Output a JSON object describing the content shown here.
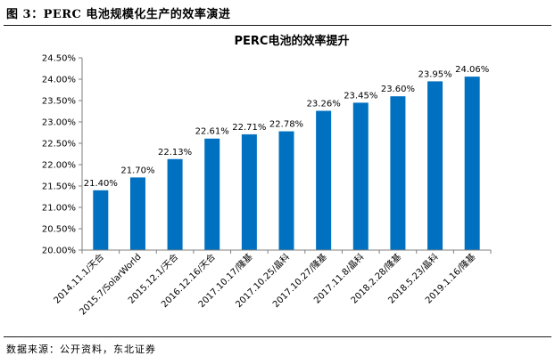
{
  "figure": {
    "title": "图 3：PERC 电池规模化生产的效率演进",
    "source": "数据来源：公开资料，东北证券"
  },
  "chart_data": {
    "type": "bar",
    "title": "PERC电池的效率提升",
    "categories": [
      "2014.11.1/天合",
      "2015.7/SolarWorld",
      "2015.12.1/天合",
      "2016.12.16/天合",
      "2017.10.17/隆基",
      "2017.10.25/晶科",
      "2017.10.27/隆基",
      "2017.11.8/晶科",
      "2018.2.28/隆基",
      "2018.5.23/晶科",
      "2019.1.16/隆基"
    ],
    "values": [
      21.4,
      21.7,
      22.13,
      22.61,
      22.71,
      22.78,
      23.26,
      23.45,
      23.6,
      23.95,
      24.06
    ],
    "data_labels": [
      "21.40%",
      "21.70%",
      "22.13%",
      "22.61%",
      "22.71%",
      "22.78%",
      "23.26%",
      "23.45%",
      "23.60%",
      "23.95%",
      "24.06%"
    ],
    "ylim": [
      20.0,
      24.5
    ],
    "yticks": [
      20.0,
      20.5,
      21.0,
      21.5,
      22.0,
      22.5,
      23.0,
      23.5,
      24.0,
      24.5
    ],
    "ytick_labels": [
      "20.00%",
      "20.50%",
      "21.00%",
      "21.50%",
      "22.00%",
      "22.50%",
      "23.00%",
      "23.50%",
      "24.00%",
      "24.50%"
    ],
    "bar_color": "#0070c0",
    "grid": false,
    "legend": "none"
  }
}
